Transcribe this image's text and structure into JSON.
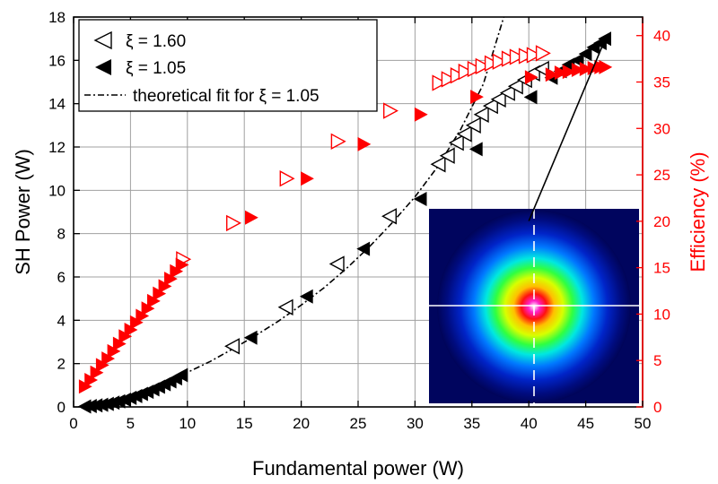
{
  "chart_data": {
    "type": "scatter",
    "xlabel": "Fundamental power (W)",
    "ylabel": "SH Power (W)",
    "y2label": "Efficiency (%)",
    "xlim": [
      0,
      50
    ],
    "ylim": [
      0,
      18
    ],
    "y2lim": [
      0,
      42
    ],
    "x_ticks": [
      "0",
      "5",
      "10",
      "15",
      "20",
      "25",
      "30",
      "35",
      "40",
      "45",
      "50"
    ],
    "y_ticks": [
      "0",
      "2",
      "4",
      "6",
      "8",
      "10",
      "12",
      "14",
      "16",
      "18"
    ],
    "y2_ticks": [
      "0",
      "5",
      "10",
      "15",
      "20",
      "25",
      "30",
      "35",
      "40"
    ],
    "grid": true,
    "colors": {
      "primary": "#000000",
      "secondary": "#ff0000"
    },
    "legend": {
      "position": "top-left",
      "entries": [
        {
          "label": "ξ = 1.60",
          "marker": "open-left-triangle"
        },
        {
          "label": "ξ = 1.05",
          "marker": "filled-left-triangle"
        },
        {
          "label": "theoretical fit for ξ = 1.05",
          "marker": "dash-dot-line"
        }
      ]
    },
    "series": [
      {
        "name": "SH power, ξ = 1.60",
        "axis": "left",
        "marker": "open-left-triangle",
        "color": "#000000",
        "x": [
          14.0,
          18.7,
          23.2,
          27.8,
          32.1,
          32.9,
          33.7,
          34.4,
          35.2,
          35.9,
          36.7,
          37.4,
          38.2,
          38.9,
          39.7,
          40.4,
          41.2
        ],
        "y": [
          2.8,
          4.6,
          6.6,
          8.8,
          11.2,
          11.6,
          12.2,
          12.6,
          13.0,
          13.5,
          13.9,
          14.2,
          14.5,
          14.8,
          15.1,
          15.4,
          15.6
        ]
      },
      {
        "name": "SH power, ξ = 1.05",
        "axis": "left",
        "marker": "filled-left-triangle",
        "color": "#000000",
        "x": [
          1.0,
          1.5,
          2.0,
          2.5,
          3.0,
          3.5,
          4.0,
          4.5,
          5.0,
          5.5,
          6.0,
          6.5,
          7.0,
          7.5,
          8.0,
          8.5,
          9.0,
          9.5,
          15.6,
          20.5,
          25.5,
          30.5,
          35.4,
          40.2,
          42.0,
          42.8,
          43.5,
          44.3,
          45.0,
          45.7,
          46.3,
          46.7
        ],
        "y": [
          0.02,
          0.04,
          0.07,
          0.1,
          0.14,
          0.2,
          0.26,
          0.33,
          0.42,
          0.5,
          0.6,
          0.7,
          0.81,
          0.93,
          1.05,
          1.18,
          1.32,
          1.47,
          3.2,
          5.1,
          7.3,
          9.6,
          11.9,
          14.3,
          15.2,
          15.5,
          15.8,
          16.0,
          16.3,
          16.6,
          16.8,
          17.0
        ]
      },
      {
        "name": "Efficiency, ξ = 1.60",
        "axis": "right",
        "marker": "open-right-triangle",
        "color": "#ff0000",
        "x": [
          9.6,
          14.0,
          18.7,
          23.2,
          27.8,
          32.1,
          32.9,
          33.7,
          34.4,
          35.2,
          35.9,
          36.7,
          37.4,
          38.2,
          38.9,
          39.7,
          40.4,
          41.2
        ],
        "y": [
          15.9,
          19.8,
          24.6,
          28.6,
          31.9,
          34.9,
          35.3,
          35.7,
          36.1,
          36.4,
          36.7,
          37.0,
          37.2,
          37.5,
          37.7,
          37.8,
          37.9,
          38.1
        ]
      },
      {
        "name": "Efficiency, ξ = 1.05",
        "axis": "right",
        "marker": "filled-right-triangle",
        "color": "#ff0000",
        "x": [
          1.0,
          1.5,
          2.0,
          2.5,
          3.0,
          3.5,
          4.0,
          4.5,
          5.0,
          5.5,
          6.0,
          6.5,
          7.0,
          7.5,
          8.0,
          8.5,
          9.0,
          9.5,
          15.6,
          20.5,
          25.5,
          30.5,
          35.4,
          40.2,
          42.0,
          42.8,
          43.5,
          44.3,
          45.0,
          45.7,
          46.3,
          46.7
        ],
        "y": [
          2.2,
          2.9,
          3.7,
          4.5,
          5.2,
          6.0,
          6.8,
          7.6,
          8.3,
          9.1,
          9.8,
          10.6,
          11.4,
          12.2,
          13.0,
          13.8,
          14.6,
          15.3,
          20.4,
          24.6,
          28.3,
          31.5,
          33.4,
          35.5,
          35.8,
          36.0,
          36.1,
          36.3,
          36.4,
          36.5,
          36.6,
          36.6
        ]
      },
      {
        "name": "theoretical fit for ξ = 1.05",
        "axis": "left",
        "line": "dash-dot",
        "color": "#000000",
        "x": [
          9.5,
          12,
          14,
          16,
          18,
          20,
          22,
          24,
          26,
          28,
          30,
          32,
          34,
          36,
          37.8
        ],
        "y": [
          1.47,
          2.1,
          2.68,
          3.3,
          3.96,
          4.7,
          5.5,
          6.4,
          7.4,
          8.5,
          9.7,
          11.1,
          12.8,
          14.9,
          18.0
        ]
      }
    ],
    "inset": {
      "description": "beam profile image",
      "arrow_from": [
        40.0,
        8.5
      ],
      "arrow_to": [
        46.6,
        17.0
      ]
    }
  }
}
